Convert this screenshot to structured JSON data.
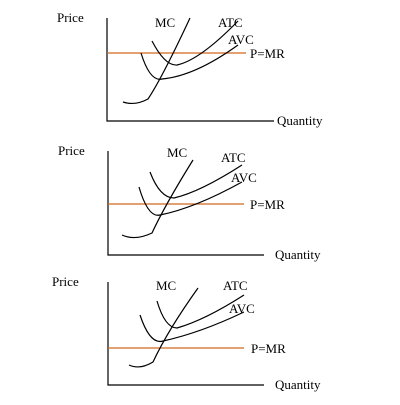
{
  "panels": [
    {
      "axis_y_label": "Price",
      "axis_x_label": "Quantity",
      "mc_label": "MC",
      "atc_label": "ATC",
      "avc_label": "AVC",
      "price_label": "P=MR"
    },
    {
      "axis_y_label": "Price",
      "axis_x_label": "Quantity",
      "mc_label": "MC",
      "atc_label": "ATC",
      "avc_label": "AVC",
      "price_label": "P=MR"
    },
    {
      "axis_y_label": "Price",
      "axis_x_label": "Quantity",
      "mc_label": "MC",
      "atc_label": "ATC",
      "avc_label": "AVC",
      "price_label": "P=MR"
    }
  ],
  "colors": {
    "curve": "#000000",
    "axis": "#000000",
    "price_line": "#d2691e"
  }
}
